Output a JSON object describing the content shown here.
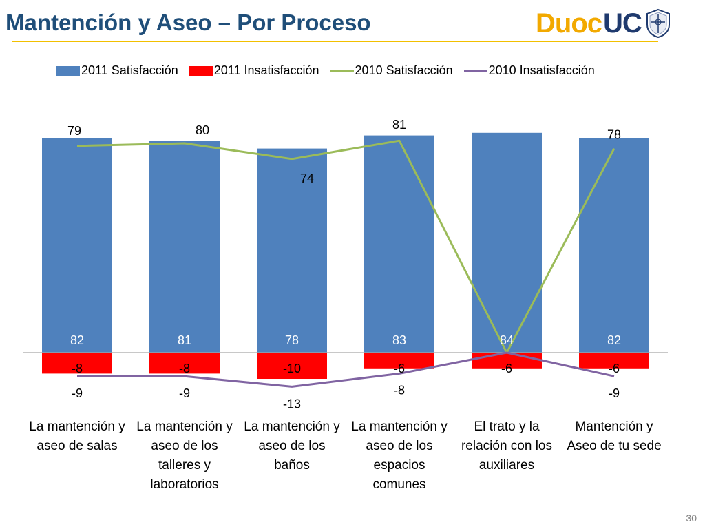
{
  "slide": {
    "title": "Mantención y Aseo – Por Proceso",
    "page_number": "30"
  },
  "logo": {
    "text_left": "Duoc",
    "text_right": "UC",
    "icon": "university-seal-icon"
  },
  "colors": {
    "sat2011": "#4F81BD",
    "insat2011": "#FF0000",
    "sat2010": "#9BBB59",
    "insat2010": "#8064A2",
    "title": "#1F4E79",
    "rule": "#F2C000"
  },
  "chart_data": {
    "type": "bar",
    "categories": [
      "La mantención y aseo de salas",
      "La mantención y aseo de los talleres y laboratorios",
      "La mantención y aseo de los baños",
      "La mantención y aseo de los espacios comunes",
      "El trato y la relación con los auxiliares",
      "Mantención y Aseo de tu sede"
    ],
    "series": [
      {
        "name": "2011 Satisfacción",
        "kind": "bar",
        "values": [
          82,
          81,
          78,
          83,
          84,
          82
        ],
        "labels": [
          "82",
          "81",
          "78",
          "83",
          "84",
          "82"
        ]
      },
      {
        "name": "2011 Insatisfacción",
        "kind": "bar",
        "values": [
          -8,
          -8,
          -10,
          -6,
          -6,
          -6
        ],
        "labels": [
          "-8",
          "-8",
          "-10",
          "-6",
          "-6",
          "-6"
        ]
      },
      {
        "name": "2010 Satisfacción",
        "kind": "line",
        "values": [
          79,
          80,
          74,
          81,
          0,
          78
        ],
        "labels": [
          "79",
          "80",
          "74",
          "81",
          "",
          "78"
        ]
      },
      {
        "name": "2010 Insatisfacción",
        "kind": "line",
        "values": [
          -9,
          -9,
          -13,
          -8,
          0,
          -9
        ],
        "labels": [
          "-9",
          "-9",
          "-13",
          "-8",
          "",
          "-9"
        ]
      }
    ],
    "ylim": [
      -12,
      86
    ],
    "legend": "top",
    "grid": false
  }
}
